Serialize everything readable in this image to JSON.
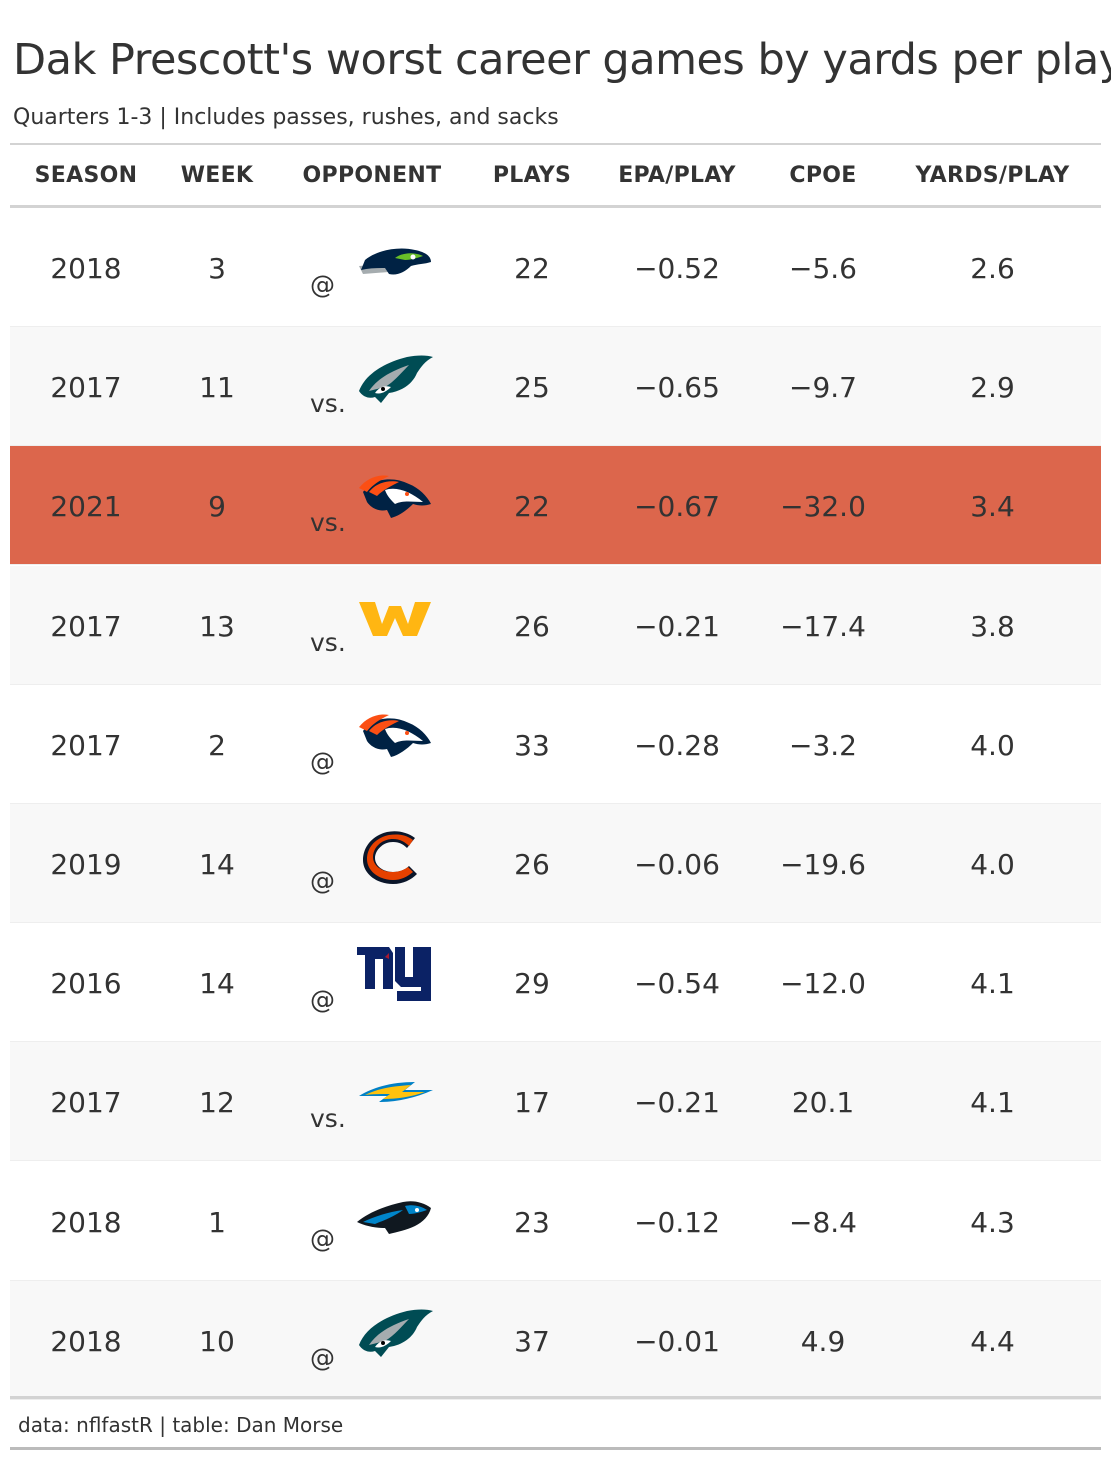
{
  "title": "Dak Prescott's worst career games by yards per play",
  "subtitle": "Quarters 1-3 | Includes passes, rushes, and sacks",
  "source": "data: nflfastR | table: Dan Morse",
  "colors": {
    "highlight_row": "#dc664c",
    "alt_row": "#f8f8f8",
    "text": "#333333",
    "rule": "#d3d3d3"
  },
  "chart_data": {
    "type": "table",
    "columns": [
      "SEASON",
      "WEEK",
      "OPPONENT",
      "PLAYS",
      "EPA/PLAY",
      "CPOE",
      "YARDS/PLAY"
    ],
    "highlight_row_index": 2,
    "rows": [
      {
        "season": "2018",
        "week": "3",
        "location": "@",
        "opponent": "seahawks-logo",
        "plays": "22",
        "epa_per_play": "−0.52",
        "cpoe": "−5.6",
        "yards_per_play": "2.6"
      },
      {
        "season": "2017",
        "week": "11",
        "location": "vs.",
        "opponent": "eagles-logo",
        "plays": "25",
        "epa_per_play": "−0.65",
        "cpoe": "−9.7",
        "yards_per_play": "2.9"
      },
      {
        "season": "2021",
        "week": "9",
        "location": "vs.",
        "opponent": "broncos-logo",
        "plays": "22",
        "epa_per_play": "−0.67",
        "cpoe": "−32.0",
        "yards_per_play": "3.4"
      },
      {
        "season": "2017",
        "week": "13",
        "location": "vs.",
        "opponent": "washington-logo",
        "plays": "26",
        "epa_per_play": "−0.21",
        "cpoe": "−17.4",
        "yards_per_play": "3.8"
      },
      {
        "season": "2017",
        "week": "2",
        "location": "@",
        "opponent": "broncos-logo",
        "plays": "33",
        "epa_per_play": "−0.28",
        "cpoe": "−3.2",
        "yards_per_play": "4.0"
      },
      {
        "season": "2019",
        "week": "14",
        "location": "@",
        "opponent": "bears-logo",
        "plays": "26",
        "epa_per_play": "−0.06",
        "cpoe": "−19.6",
        "yards_per_play": "4.0"
      },
      {
        "season": "2016",
        "week": "14",
        "location": "@",
        "opponent": "giants-logo",
        "plays": "29",
        "epa_per_play": "−0.54",
        "cpoe": "−12.0",
        "yards_per_play": "4.1"
      },
      {
        "season": "2017",
        "week": "12",
        "location": "vs.",
        "opponent": "chargers-logo",
        "plays": "17",
        "epa_per_play": "−0.21",
        "cpoe": "20.1",
        "yards_per_play": "4.1"
      },
      {
        "season": "2018",
        "week": "1",
        "location": "@",
        "opponent": "panthers-logo",
        "plays": "23",
        "epa_per_play": "−0.12",
        "cpoe": "−8.4",
        "yards_per_play": "4.3"
      },
      {
        "season": "2018",
        "week": "10",
        "location": "@",
        "opponent": "eagles-logo",
        "plays": "37",
        "epa_per_play": "−0.01",
        "cpoe": "4.9",
        "yards_per_play": "4.4"
      }
    ]
  }
}
